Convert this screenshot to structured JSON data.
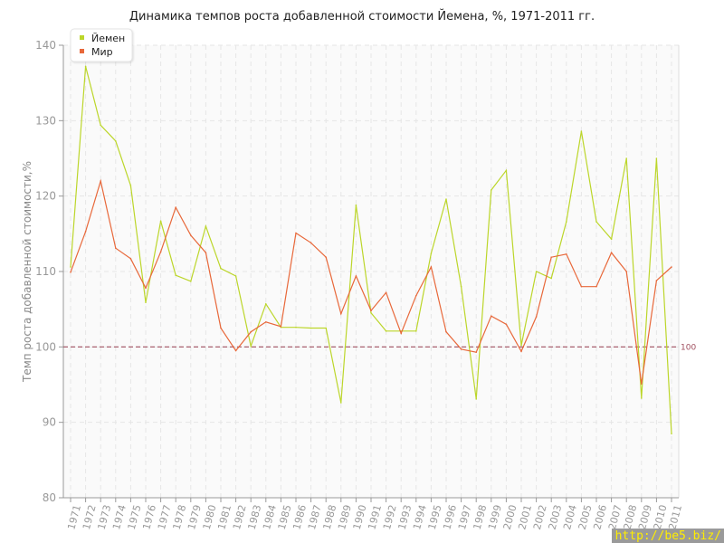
{
  "chart_data": {
    "type": "line",
    "title": "Динамика темпов роста добавленной стоимости Йемена, %, 1971-2011 гг.",
    "xlabel": "",
    "ylabel": "Темп роста добавленной стоимости,%",
    "ylim": [
      80,
      140
    ],
    "yticks": [
      80,
      90,
      100,
      110,
      120,
      130,
      140
    ],
    "grid": true,
    "legend_position": "top-left",
    "reference_line": {
      "value": 100,
      "label": "100",
      "color": "#a05060"
    },
    "x": [
      1971,
      1972,
      1973,
      1974,
      1975,
      1976,
      1977,
      1978,
      1979,
      1980,
      1981,
      1982,
      1983,
      1984,
      1985,
      1986,
      1987,
      1988,
      1989,
      1990,
      1991,
      1992,
      1993,
      1994,
      1995,
      1996,
      1997,
      1998,
      1999,
      2000,
      2001,
      2002,
      2003,
      2004,
      2005,
      2006,
      2007,
      2008,
      2009,
      2010,
      2011
    ],
    "series": [
      {
        "name": "Йемен",
        "color": "#bcd62a",
        "values": [
          110.6,
          137.2,
          129.4,
          127.3,
          121.4,
          105.9,
          116.7,
          109.5,
          108.7,
          116.0,
          110.4,
          109.4,
          100.1,
          105.7,
          102.6,
          102.6,
          102.5,
          102.5,
          92.6,
          118.8,
          104.5,
          102.1,
          102.1,
          102.1,
          112.4,
          119.6,
          108.0,
          93.1,
          120.8,
          123.4,
          100.2,
          110.0,
          109.1,
          116.6,
          128.6,
          116.6,
          114.3,
          125.0,
          93.2,
          125.0,
          88.5
        ]
      },
      {
        "name": "Мир",
        "color": "#e8683a",
        "values": [
          109.9,
          115.3,
          122.0,
          113.1,
          111.7,
          107.8,
          112.6,
          118.5,
          114.8,
          112.5,
          102.5,
          99.5,
          102.0,
          103.3,
          102.7,
          115.1,
          113.8,
          111.9,
          104.4,
          109.4,
          104.8,
          107.2,
          101.8,
          106.8,
          110.6,
          102.0,
          99.7,
          99.3,
          104.1,
          103.0,
          99.4,
          104.0,
          111.9,
          112.3,
          108.0,
          108.0,
          112.5,
          110.0,
          95.1,
          108.8,
          110.6
        ]
      }
    ]
  },
  "watermark": "http://be5.biz/"
}
